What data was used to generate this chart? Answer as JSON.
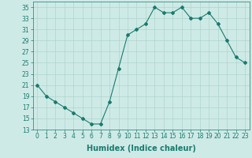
{
  "x": [
    0,
    1,
    2,
    3,
    4,
    5,
    6,
    7,
    8,
    9,
    10,
    11,
    12,
    13,
    14,
    15,
    16,
    17,
    18,
    19,
    20,
    21,
    22,
    23
  ],
  "y": [
    21,
    19,
    18,
    17,
    16,
    15,
    14,
    14,
    18,
    24,
    30,
    31,
    32,
    35,
    34,
    34,
    35,
    33,
    33,
    34,
    32,
    29,
    26,
    25
  ],
  "line_color": "#1a7a6e",
  "marker": "D",
  "marker_size": 2.0,
  "bg_color": "#ceeae6",
  "grid_color": "#afd4cf",
  "xlabel": "Humidex (Indice chaleur)",
  "xlim": [
    -0.5,
    23.5
  ],
  "ylim": [
    13,
    36
  ],
  "yticks": [
    13,
    15,
    17,
    19,
    21,
    23,
    25,
    27,
    29,
    31,
    33,
    35
  ],
  "xticks": [
    0,
    1,
    2,
    3,
    4,
    5,
    6,
    7,
    8,
    9,
    10,
    11,
    12,
    13,
    14,
    15,
    16,
    17,
    18,
    19,
    20,
    21,
    22,
    23
  ],
  "tick_label_fontsize": 5.5,
  "xlabel_fontsize": 7.0
}
